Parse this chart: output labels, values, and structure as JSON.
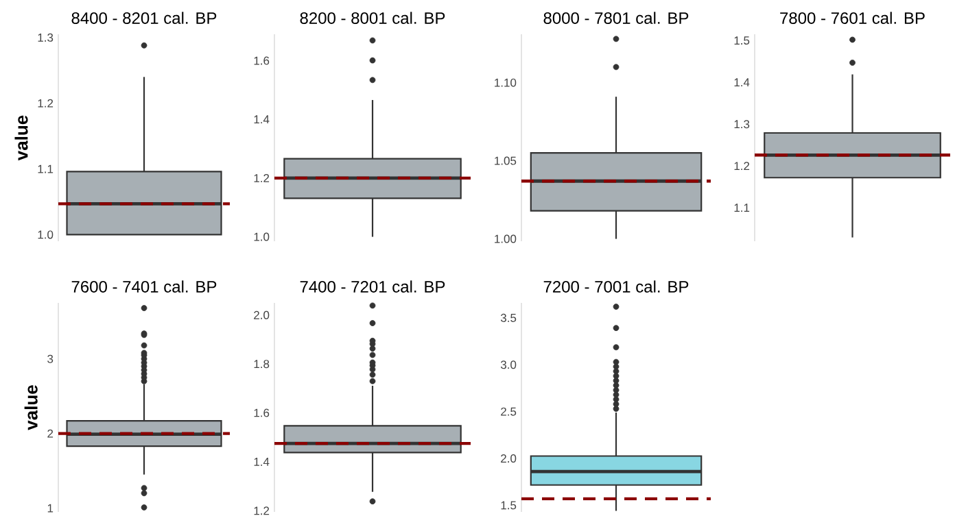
{
  "chart_data": [
    {
      "type": "box",
      "title": "8400 - 8201 cal. BP",
      "ylabel": "value",
      "categories": [
        null
      ],
      "colors": [
        "#a7afb4"
      ],
      "boxes": [
        {
          "low": 1.0,
          "q1": 1.0,
          "median": 1.047,
          "q3": 1.096,
          "high": 1.24,
          "outliers": [
            1.288
          ]
        }
      ],
      "ylim": [
        0.99,
        1.305
      ],
      "yticks": [
        {
          "value": 1.0,
          "label": "1.0"
        },
        1.1,
        1.2,
        1.3
      ],
      "ref_lines": [
        {
          "axis": "y",
          "value": 1.047,
          "color": "#8b0000",
          "line_style": "dashed"
        }
      ]
    },
    {
      "type": "box",
      "title": "8200 - 8001 cal. BP",
      "categories": [
        null
      ],
      "colors": [
        "#a7afb4"
      ],
      "boxes": [
        {
          "low": 1.0,
          "q1": 1.131,
          "median": 1.2,
          "q3": 1.266,
          "high": 1.466,
          "outliers": [
            1.534,
            1.601,
            1.669
          ]
        }
      ],
      "ylim": [
        0.985,
        1.69
      ],
      "yticks": [
        {
          "value": 1.0,
          "label": "1.0"
        },
        1.2,
        1.4,
        1.6
      ],
      "ref_lines": [
        {
          "axis": "y",
          "value": 1.2,
          "color": "#8b0000",
          "line_style": "dashed"
        }
      ]
    },
    {
      "type": "box",
      "title": "8000 - 7801 cal. BP",
      "categories": [
        null
      ],
      "colors": [
        "#a7afb4"
      ],
      "boxes": [
        {
          "low": 1.0,
          "q1": 1.018,
          "median": 1.037,
          "q3": 1.055,
          "high": 1.091,
          "outliers": [
            1.11,
            1.128
          ]
        }
      ],
      "ylim": [
        0.9985,
        1.131
      ],
      "yticks": [
        {
          "value": 1.0,
          "label": "1.00"
        },
        1.05,
        {
          "value": 1.1,
          "label": "1.10"
        }
      ],
      "ref_lines": [
        {
          "axis": "y",
          "value": 1.037,
          "color": "#8b0000",
          "line_style": "dashed"
        }
      ]
    },
    {
      "type": "box",
      "title": "7800 - 7601 cal. BP",
      "categories": [
        null
      ],
      "colors": [
        "#a7afb4"
      ],
      "boxes": [
        {
          "low": 1.029,
          "q1": 1.172,
          "median": 1.226,
          "q3": 1.279,
          "high": 1.419,
          "outliers": [
            1.447,
            1.502
          ]
        }
      ],
      "ylim": [
        1.02,
        1.515
      ],
      "yticks": [
        1.1,
        1.2,
        1.3,
        1.4,
        1.5
      ],
      "ref_lines": [
        {
          "axis": "y",
          "value": 1.226,
          "color": "#8b0000",
          "line_style": "dashed"
        }
      ]
    },
    {
      "type": "box",
      "title": "7600 - 7401 cal. BP",
      "ylabel": "value",
      "categories": [
        null
      ],
      "colors": [
        "#a7afb4"
      ],
      "boxes": [
        {
          "low": 1.45,
          "q1": 1.83,
          "median": 1.99,
          "q3": 2.17,
          "high": 2.66,
          "outliers": [
            1.01,
            1.2,
            1.27,
            2.7,
            2.75,
            2.8,
            2.85,
            2.9,
            2.95,
            3.0,
            3.05,
            3.08,
            3.18,
            3.32,
            3.34,
            3.68
          ]
        }
      ],
      "ylim": [
        0.95,
        3.75
      ],
      "yticks": [
        1,
        2,
        3
      ],
      "ref_lines": [
        {
          "axis": "y",
          "value": 2.0,
          "color": "#8b0000",
          "line_style": "dashed"
        }
      ]
    },
    {
      "type": "box",
      "title": "7400 - 7201 cal. BP",
      "categories": [
        null
      ],
      "colors": [
        "#a7afb4"
      ],
      "boxes": [
        {
          "low": 1.277,
          "q1": 1.438,
          "median": 1.475,
          "q3": 1.547,
          "high": 1.711,
          "outliers": [
            1.238,
            1.73,
            1.756,
            1.778,
            1.794,
            1.806,
            1.837,
            1.863,
            1.882,
            1.895,
            1.967,
            2.039
          ]
        }
      ],
      "ylim": [
        1.195,
        2.05
      ],
      "yticks": [
        {
          "value": 1.2,
          "label": "1.2"
        },
        1.4,
        1.6,
        1.8,
        {
          "value": 2.0,
          "label": "2.0"
        }
      ],
      "ref_lines": [
        {
          "axis": "y",
          "value": 1.475,
          "color": "#8b0000",
          "line_style": "dashed"
        }
      ]
    },
    {
      "type": "box",
      "title": "7200 - 7001 cal. BP",
      "categories": [
        null
      ],
      "colors": [
        "#88d6e2"
      ],
      "boxes": [
        {
          "low": 1.441,
          "q1": 1.717,
          "median": 1.861,
          "q3": 2.026,
          "high": 2.49,
          "outliers": [
            2.53,
            2.58,
            2.63,
            2.68,
            2.73,
            2.78,
            2.83,
            2.88,
            2.93,
            2.98,
            3.03,
            3.186,
            3.392,
            3.619
          ]
        }
      ],
      "ylim": [
        1.43,
        3.66
      ],
      "yticks": [
        1.5,
        {
          "value": 2.0,
          "label": "2.0"
        },
        2.5,
        {
          "value": 3.0,
          "label": "3.0"
        },
        3.5
      ],
      "ref_lines": [
        {
          "axis": "y",
          "value": 1.57,
          "color": "#8b0000",
          "line_style": "dashed"
        }
      ]
    }
  ]
}
